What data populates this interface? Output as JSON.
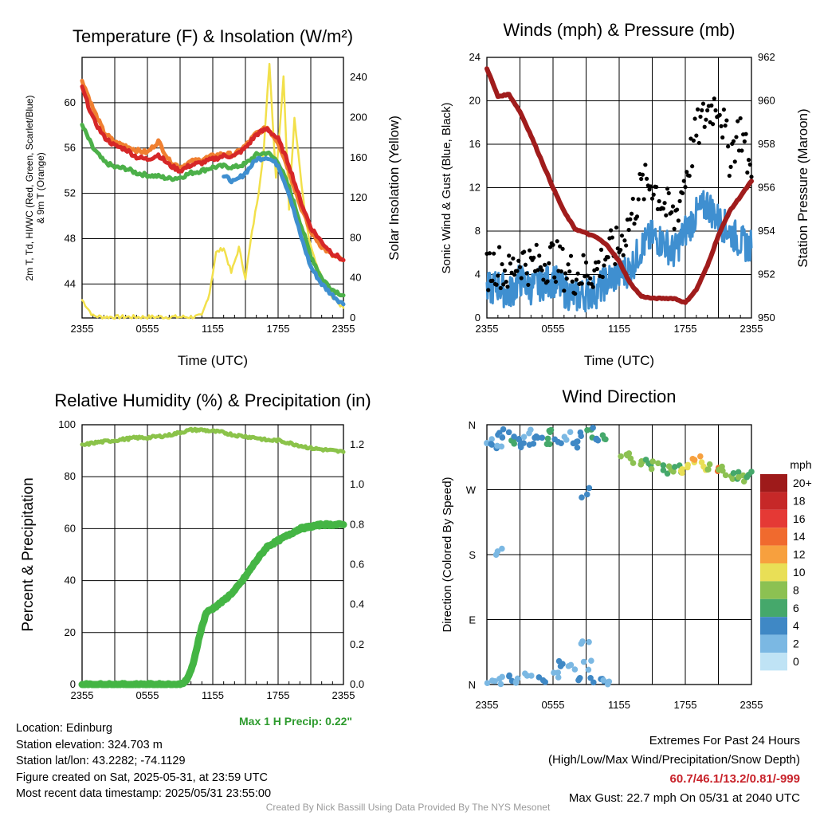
{
  "charts": {
    "temperature": {
      "title": "Temperature (F) & Insolation (W/m²)",
      "ylabel_left_line1": "2m T, Td, HI/WC (Red, Green, Scarlet/Blue)",
      "ylabel_left_line2": "& 9m T (Orange)",
      "ylabel_right": "Solar Insolation (Yellow)",
      "xlabel": "Time (UTC)"
    },
    "winds": {
      "title": "Winds (mph) & Pressure (mb)",
      "ylabel_left": "Sonic Wind & Gust (Blue, Black)",
      "ylabel_right": "Station Pressure (Maroon)",
      "xlabel": "Time (UTC)"
    },
    "humidity": {
      "title": "Relative Humidity (%) & Precipitation (in)",
      "ylabel_left": "Percent & Precipitation",
      "max_precip_label": "Max 1 H Precip: 0.22\""
    },
    "direction": {
      "title": "Wind Direction",
      "ylabel_left": "Direction (Colored By Speed)",
      "legend_title": "mph"
    }
  },
  "chart_data": [
    {
      "type": "line",
      "title": "Temperature (F) & Insolation (W/m²)",
      "xlabel": "Time (UTC)",
      "x_ticks": [
        "2355",
        "0555",
        "1155",
        "1755",
        "2355"
      ],
      "x_hours": [
        0,
        24
      ],
      "ylim": [
        41,
        64
      ],
      "y_ticks": [
        44,
        48,
        52,
        56,
        60
      ],
      "y2lim": [
        0,
        260
      ],
      "y2_ticks": [
        0,
        40,
        80,
        120,
        160,
        200,
        240
      ],
      "series": [
        {
          "name": "2m T",
          "color": "#d62728",
          "axis": "left",
          "x": [
            0,
            1,
            2,
            3,
            4,
            5,
            6,
            7,
            8,
            9,
            10,
            11,
            12,
            13,
            14,
            15,
            16,
            17,
            18,
            19,
            20,
            21,
            22,
            23,
            24
          ],
          "values": [
            61.3,
            58.6,
            57.0,
            56.2,
            55.9,
            55.2,
            55.0,
            55.4,
            54.5,
            54.0,
            54.5,
            54.7,
            55.0,
            55.3,
            55.3,
            56.0,
            57.2,
            57.7,
            56.8,
            54.5,
            51.5,
            49.0,
            47.7,
            46.7,
            46.1
          ]
        },
        {
          "name": "9m T",
          "color": "#f07f30",
          "axis": "left",
          "x": [
            0,
            1,
            2,
            3,
            4,
            5,
            6,
            7,
            8,
            9,
            10,
            11,
            12,
            13,
            14,
            15,
            16,
            17,
            18,
            19,
            20,
            21,
            22,
            23,
            24
          ],
          "values": [
            62.0,
            59.5,
            57.4,
            56.5,
            56.2,
            55.8,
            55.6,
            56.6,
            54.9,
            54.3,
            54.8,
            55.0,
            55.3,
            55.5,
            55.4,
            56.2,
            57.3,
            57.8,
            56.5,
            54.0,
            51.0,
            48.6,
            47.3,
            46.5,
            46.1
          ]
        },
        {
          "name": "Td",
          "color": "#4cb049",
          "axis": "left",
          "x": [
            0,
            1,
            2,
            3,
            4,
            5,
            6,
            7,
            8,
            9,
            10,
            11,
            12,
            13,
            14,
            15,
            16,
            17,
            18,
            19,
            20,
            21,
            22,
            23,
            24
          ],
          "values": [
            58.0,
            56.0,
            54.8,
            54.3,
            54.2,
            53.8,
            53.6,
            53.5,
            53.3,
            53.4,
            53.8,
            54.0,
            54.3,
            54.4,
            54.3,
            54.6,
            55.4,
            55.6,
            54.8,
            52.5,
            49.5,
            46.5,
            44.5,
            43.5,
            43.0
          ]
        },
        {
          "name": "HI/WC",
          "color": "#3f8fd0",
          "axis": "left",
          "x": [
            13,
            14,
            15,
            16,
            17,
            18,
            19,
            20,
            21,
            22,
            23,
            24
          ],
          "values": [
            53.5,
            53.0,
            53.8,
            55.0,
            55.2,
            54.5,
            52.0,
            48.5,
            45.5,
            44.0,
            43.0,
            42.2
          ]
        },
        {
          "name": "Solar Insolation",
          "color": "#f2e04b",
          "axis": "right",
          "x": [
            0,
            1,
            2,
            3,
            4,
            5,
            6,
            7,
            8,
            9,
            10,
            11,
            11.7,
            12.3,
            13,
            13.7,
            14.4,
            15,
            15.6,
            16.2,
            16.7,
            17.2,
            17.8,
            18.5,
            19,
            19.5,
            20,
            20.5,
            21,
            22,
            23,
            24
          ],
          "values": [
            18,
            2,
            1,
            1,
            1,
            1,
            1,
            1,
            1,
            1,
            1,
            2,
            25,
            65,
            70,
            45,
            70,
            40,
            85,
            125,
            170,
            255,
            140,
            240,
            110,
            200,
            150,
            100,
            70,
            40,
            20,
            10
          ]
        }
      ]
    },
    {
      "type": "line",
      "title": "Winds (mph) & Pressure (mb)",
      "xlabel": "Time (UTC)",
      "x_ticks": [
        "2355",
        "0555",
        "1155",
        "1755",
        "2355"
      ],
      "ylim": [
        0,
        24
      ],
      "y_ticks": [
        0,
        4,
        8,
        12,
        16,
        20,
        24
      ],
      "y2lim": [
        950,
        962
      ],
      "y2_ticks": [
        950,
        952,
        954,
        956,
        958,
        960,
        962
      ],
      "series": [
        {
          "name": "Sonic Wind",
          "color": "#3f8fd0",
          "axis": "left",
          "x": [
            0,
            1,
            2,
            3,
            4,
            5,
            6,
            7,
            8,
            9,
            10,
            11,
            12,
            13,
            14,
            15,
            16,
            17,
            18,
            19,
            20,
            21,
            22,
            23,
            24
          ],
          "values": [
            2.5,
            3.0,
            2.2,
            3.5,
            2.8,
            3.2,
            3.5,
            2.5,
            2.0,
            2.2,
            2.5,
            3.5,
            4.0,
            4.5,
            6.5,
            7.5,
            7.0,
            6.0,
            8.0,
            9.5,
            10.5,
            9.0,
            8.0,
            7.0,
            6.5
          ]
        },
        {
          "name": "Gust",
          "color": "#000000",
          "axis": "left",
          "x": [
            0,
            1,
            2,
            3,
            4,
            5,
            6,
            7,
            8,
            9,
            10,
            11,
            12,
            13,
            14,
            15,
            16,
            17,
            18,
            19,
            20,
            21,
            22,
            23,
            24
          ],
          "values": [
            4.5,
            5.0,
            4.0,
            5.5,
            4.8,
            5.0,
            5.5,
            4.5,
            4.0,
            4.2,
            4.5,
            6.0,
            6.5,
            9.0,
            12.0,
            12.5,
            10.5,
            9.0,
            13.0,
            17.0,
            19.0,
            20.0,
            15.0,
            17.5,
            13.0
          ]
        },
        {
          "name": "Station Pressure",
          "color": "#a01c1c",
          "axis": "right",
          "x": [
            0,
            1,
            2,
            3,
            4,
            5,
            6,
            7,
            8,
            9,
            10,
            11,
            12,
            13,
            14,
            15,
            16,
            17,
            18,
            19,
            20,
            21,
            22,
            23,
            24
          ],
          "values": [
            961.5,
            960.2,
            960.3,
            959.5,
            958.4,
            957.2,
            956.0,
            954.9,
            954.1,
            953.9,
            953.7,
            953.3,
            952.6,
            951.6,
            951.0,
            950.9,
            950.9,
            950.9,
            950.7,
            951.3,
            952.4,
            953.8,
            954.9,
            955.6,
            956.3
          ]
        }
      ]
    },
    {
      "type": "line",
      "title": "Relative Humidity (%) & Precipitation (in)",
      "x_ticks": [
        "2355",
        "0555",
        "1155",
        "1755",
        "2355"
      ],
      "ylim": [
        0,
        100
      ],
      "y_ticks": [
        0,
        20,
        40,
        60,
        80,
        100
      ],
      "y2lim": [
        0,
        1.3
      ],
      "y2_ticks": [
        0.0,
        0.2,
        0.4,
        0.6,
        0.8,
        1.0,
        1.2
      ],
      "series": [
        {
          "name": "Relative Humidity",
          "color": "#8bc34a",
          "axis": "left",
          "x": [
            0,
            1,
            2,
            3,
            4,
            5,
            6,
            7,
            8,
            9,
            10,
            11,
            12,
            13,
            14,
            15,
            16,
            17,
            18,
            19,
            20,
            21,
            22,
            23,
            24
          ],
          "values": [
            92,
            93,
            93.5,
            94,
            94.5,
            95,
            95,
            95.5,
            96,
            97,
            98,
            98,
            97.5,
            97,
            96,
            95.5,
            95,
            94,
            94,
            93,
            92,
            91,
            90.5,
            90,
            89.5
          ]
        },
        {
          "name": "Precipitation",
          "color": "#44b544",
          "axis": "right",
          "x": [
            0,
            9,
            9.6,
            10.2,
            10.8,
            11.4,
            12,
            13,
            14,
            15,
            16,
            17,
            18,
            19,
            20,
            21,
            22,
            23,
            24
          ],
          "values": [
            0,
            0,
            0.02,
            0.1,
            0.25,
            0.36,
            0.38,
            0.42,
            0.47,
            0.54,
            0.62,
            0.69,
            0.72,
            0.75,
            0.78,
            0.79,
            0.8,
            0.8,
            0.8
          ]
        }
      ]
    },
    {
      "type": "scatter",
      "title": "Wind Direction",
      "ylabel": "Direction (Colored By Speed)",
      "x_ticks": [
        "2355",
        "0555",
        "1155",
        "1755",
        "2355"
      ],
      "y_ticks": [
        "N",
        "E",
        "S",
        "W",
        "N"
      ],
      "ylim": [
        0,
        360
      ],
      "legend": {
        "title": "mph",
        "labels": [
          "20+",
          "18",
          "16",
          "14",
          "12",
          "10",
          "8",
          "6",
          "4",
          "2",
          "0"
        ],
        "colors": [
          "#9e1a1a",
          "#c62828",
          "#e53935",
          "#f06a2e",
          "#f7a03e",
          "#e9df56",
          "#8cc152",
          "#45a86b",
          "#3f88c5",
          "#7bb8e3",
          "#bfe3f5"
        ]
      },
      "points": [
        {
          "x": 0.2,
          "dir": 340,
          "speed": 2
        },
        {
          "x": 0.5,
          "dir": 330,
          "speed": 3
        },
        {
          "x": 0.9,
          "dir": 345,
          "speed": 4
        },
        {
          "x": 1.3,
          "dir": 335,
          "speed": 2
        },
        {
          "x": 1.8,
          "dir": 350,
          "speed": 3
        },
        {
          "x": 2.2,
          "dir": 338,
          "speed": 5
        },
        {
          "x": 2.6,
          "dir": 345,
          "speed": 3
        },
        {
          "x": 3.1,
          "dir": 332,
          "speed": 4
        },
        {
          "x": 3.6,
          "dir": 348,
          "speed": 2
        },
        {
          "x": 4.1,
          "dir": 340,
          "speed": 4
        },
        {
          "x": 4.7,
          "dir": 342,
          "speed": 3
        },
        {
          "x": 5.3,
          "dir": 336,
          "speed": 5
        },
        {
          "x": 5.8,
          "dir": 345,
          "speed": 6
        },
        {
          "x": 6.4,
          "dir": 338,
          "speed": 3
        },
        {
          "x": 7.2,
          "dir": 346,
          "speed": 2
        },
        {
          "x": 7.8,
          "dir": 334,
          "speed": 4
        },
        {
          "x": 8.6,
          "dir": 342,
          "speed": 3
        },
        {
          "x": 9.3,
          "dir": 349,
          "speed": 5
        },
        {
          "x": 10.0,
          "dir": 344,
          "speed": 4
        },
        {
          "x": 10.6,
          "dir": 339,
          "speed": 6
        },
        {
          "x": 0.4,
          "dir": 8,
          "speed": 2
        },
        {
          "x": 1.1,
          "dir": 5,
          "speed": 1
        },
        {
          "x": 1.9,
          "dir": 12,
          "speed": 3
        },
        {
          "x": 2.8,
          "dir": 4,
          "speed": 2
        },
        {
          "x": 3.7,
          "dir": 18,
          "speed": 1
        },
        {
          "x": 5.0,
          "dir": 10,
          "speed": 3
        },
        {
          "x": 6.1,
          "dir": 15,
          "speed": 2
        },
        {
          "x": 6.9,
          "dir": 25,
          "speed": 3
        },
        {
          "x": 7.6,
          "dir": 20,
          "speed": 1
        },
        {
          "x": 8.4,
          "dir": 6,
          "speed": 4
        },
        {
          "x": 9.1,
          "dir": 28,
          "speed": 2
        },
        {
          "x": 9.8,
          "dir": 2,
          "speed": 4
        },
        {
          "x": 10.3,
          "dir": 4,
          "speed": 3
        },
        {
          "x": 10.9,
          "dir": 8,
          "speed": 2
        },
        {
          "x": 8.9,
          "dir": 63,
          "speed": 2
        },
        {
          "x": 1.0,
          "dir": 182,
          "speed": 2
        },
        {
          "x": 8.9,
          "dir": 265,
          "speed": 3
        },
        {
          "x": 12.5,
          "dir": 318,
          "speed": 7
        },
        {
          "x": 13.2,
          "dir": 313,
          "speed": 7
        },
        {
          "x": 13.9,
          "dir": 310,
          "speed": 8
        },
        {
          "x": 14.6,
          "dir": 305,
          "speed": 6
        },
        {
          "x": 15.3,
          "dir": 302,
          "speed": 7
        },
        {
          "x": 16.0,
          "dir": 298,
          "speed": 6
        },
        {
          "x": 16.7,
          "dir": 300,
          "speed": 8
        },
        {
          "x": 17.3,
          "dir": 296,
          "speed": 5
        },
        {
          "x": 17.9,
          "dir": 301,
          "speed": 9
        },
        {
          "x": 18.5,
          "dir": 306,
          "speed": 10
        },
        {
          "x": 19.0,
          "dir": 310,
          "speed": 12
        },
        {
          "x": 19.5,
          "dir": 303,
          "speed": 9
        },
        {
          "x": 20.1,
          "dir": 298,
          "speed": 8
        },
        {
          "x": 20.7,
          "dir": 302,
          "speed": 13
        },
        {
          "x": 21.3,
          "dir": 296,
          "speed": 7
        },
        {
          "x": 22.0,
          "dir": 288,
          "speed": 8
        },
        {
          "x": 22.6,
          "dir": 292,
          "speed": 6
        },
        {
          "x": 23.2,
          "dir": 287,
          "speed": 7
        },
        {
          "x": 23.8,
          "dir": 295,
          "speed": 6
        }
      ]
    }
  ],
  "info": {
    "location": "Location: Edinburg",
    "elevation": "Station elevation: 324.703 m",
    "latlon": "Station lat/lon: 43.2282; -74.1129",
    "created": "Figure created on Sat, 2025-05-31, at 23:59 UTC",
    "recent": "Most recent data timestamp: 2025/05/31 23:55:00"
  },
  "extremes": {
    "title": "Extremes For Past 24 Hours",
    "subtitle": "(High/Low/Max Wind/Precipitation/Snow Depth)",
    "values": "60.7/46.1/13.2/0.81/-999",
    "max_gust": "Max Gust: 22.7 mph On 05/31 at 2040 UTC"
  },
  "credit": "Created By Nick Bassill Using Data Provided By The NYS Mesonet"
}
